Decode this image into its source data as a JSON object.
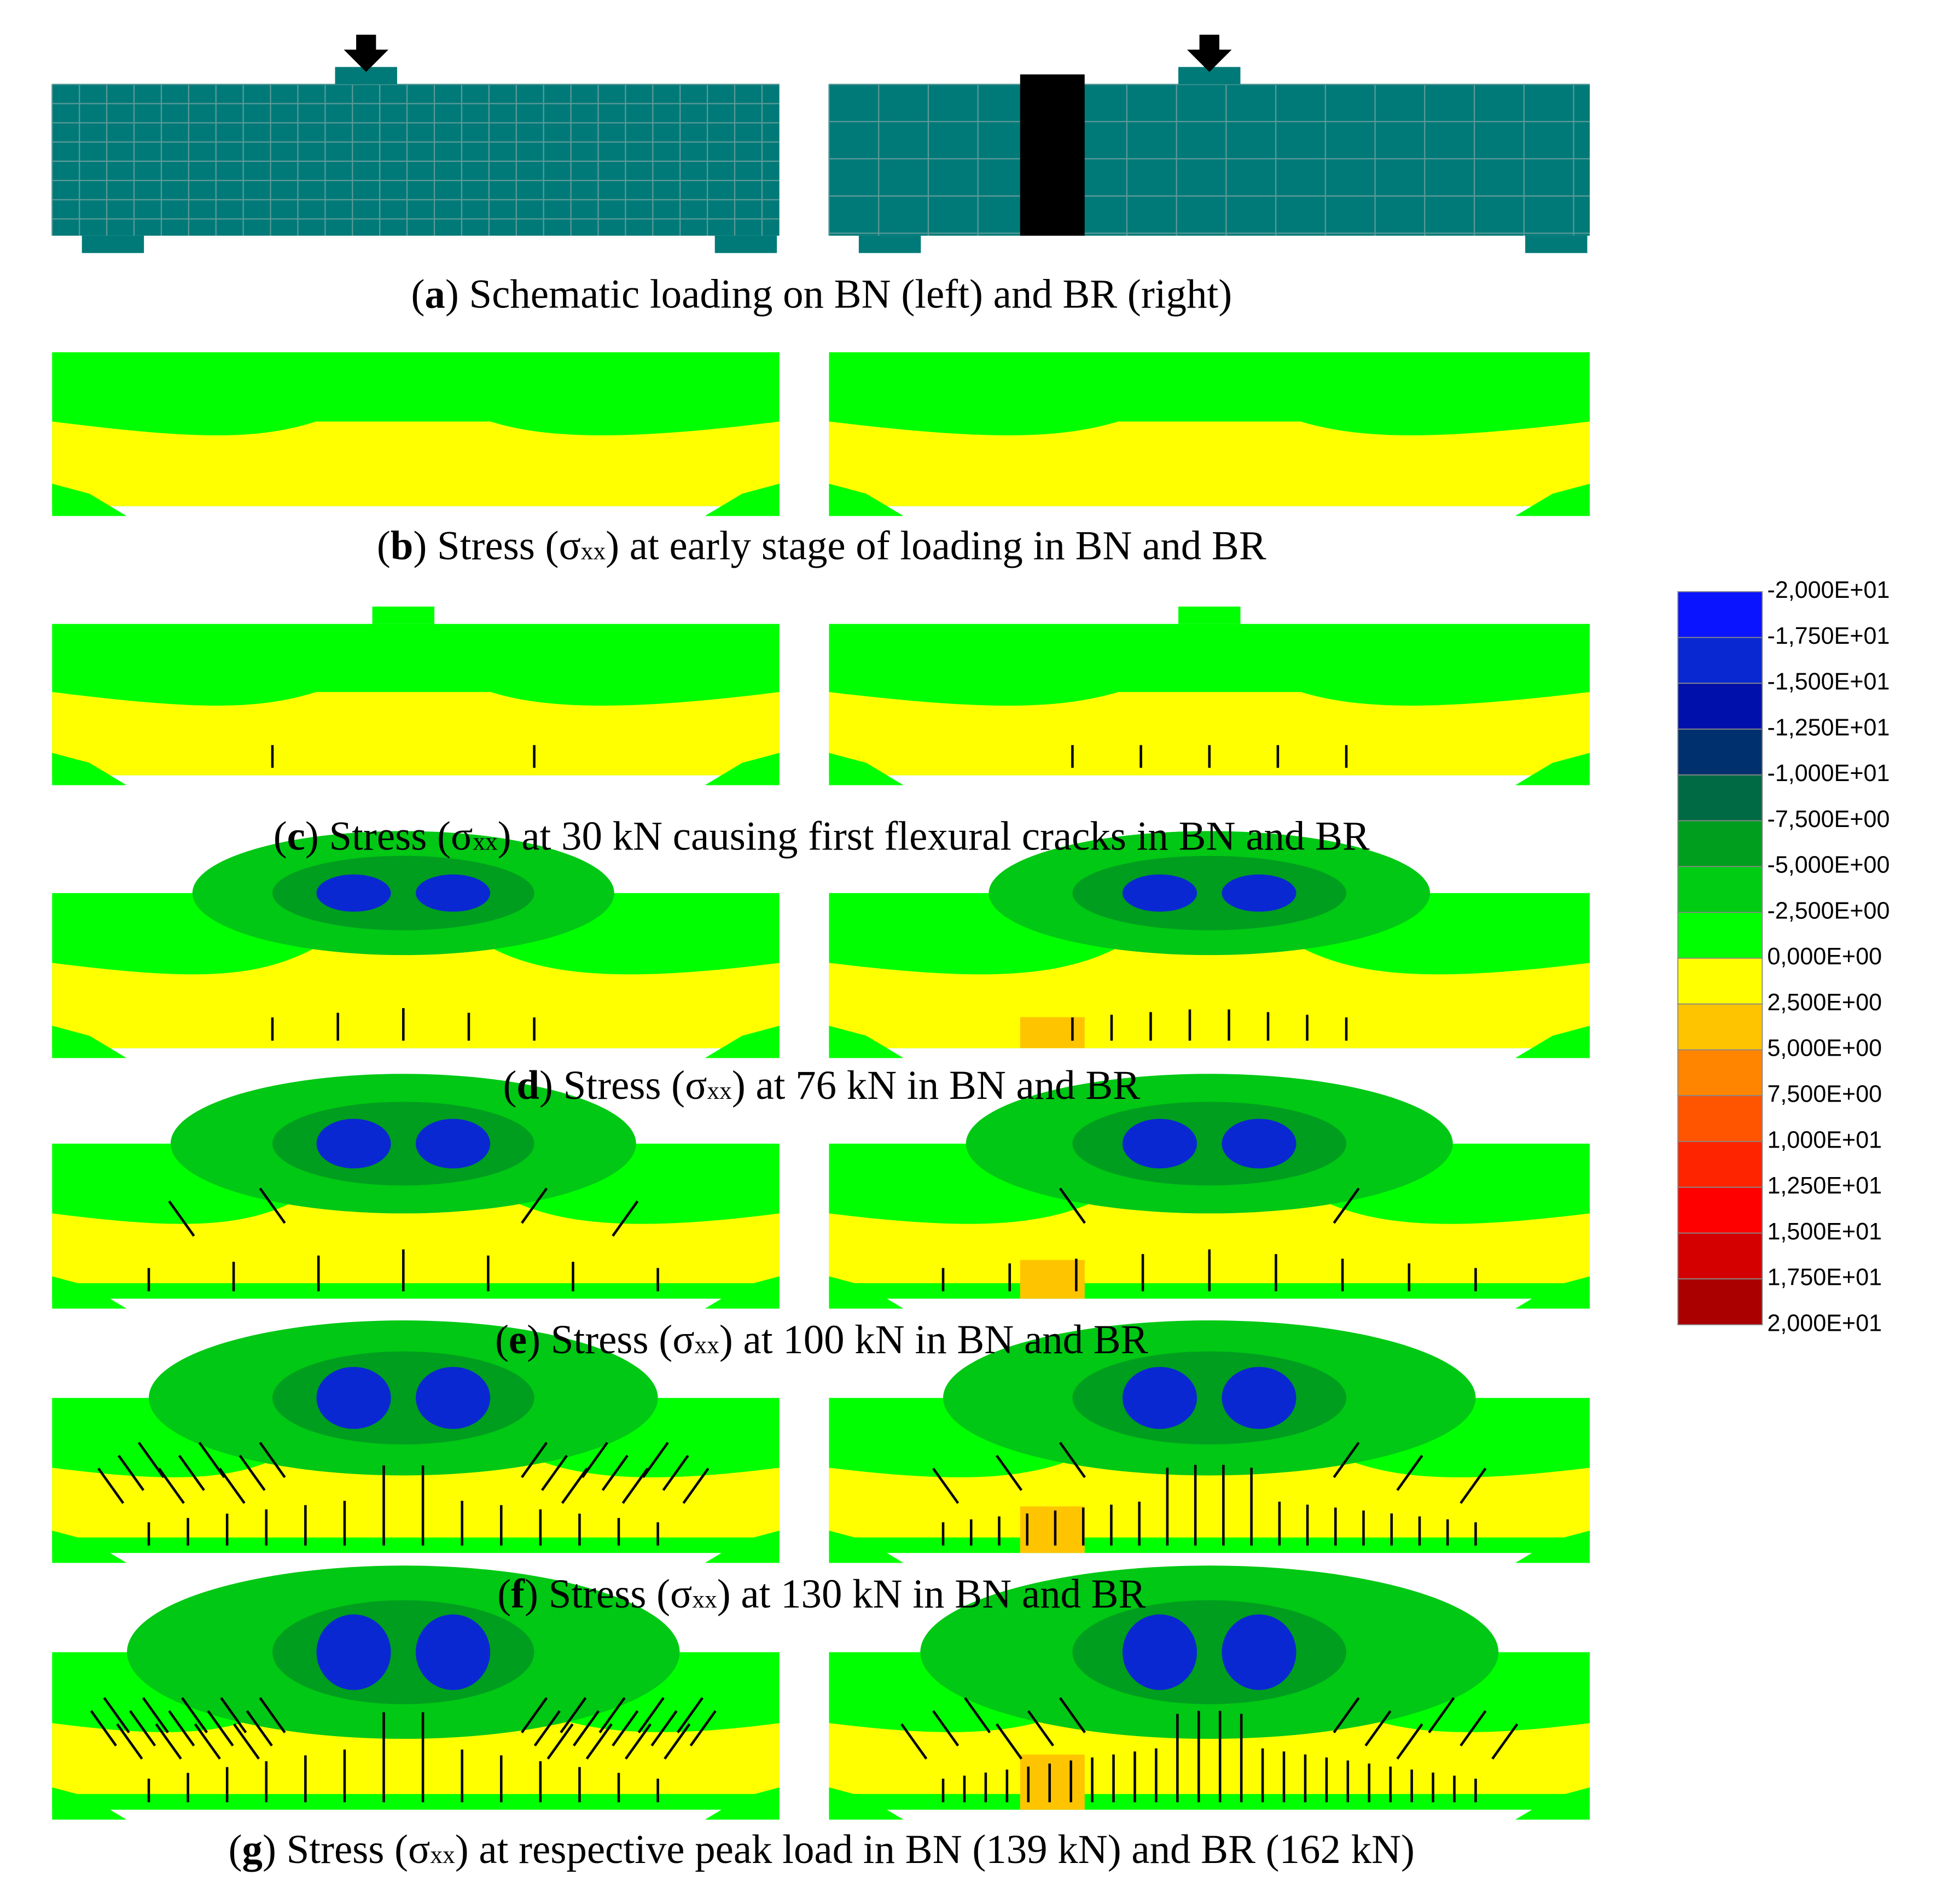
{
  "panels": [
    {
      "caption": [
        {
          "text": "("
        },
        {
          "text": "a",
          "bold": true
        },
        {
          "text": ") Schematic loading on BN (left) and BR (right)"
        }
      ]
    },
    {
      "caption": [
        {
          "text": "("
        },
        {
          "text": "b",
          "bold": true
        },
        {
          "text": ") Stress (σ"
        },
        {
          "text": "xx",
          "sub": true
        },
        {
          "text": ") at early stage of loading in BN and BR"
        }
      ]
    },
    {
      "caption": [
        {
          "text": "("
        },
        {
          "text": "c",
          "bold": true
        },
        {
          "text": ") Stress (σ"
        },
        {
          "text": "xx",
          "sub": true
        },
        {
          "text": ") at 30 kN causing first flexural cracks in BN and BR"
        }
      ]
    },
    {
      "caption": [
        {
          "text": "("
        },
        {
          "text": "d",
          "bold": true
        },
        {
          "text": ") Stress (σ"
        },
        {
          "text": "xx",
          "sub": true
        },
        {
          "text": ") at 76 kN in BN and BR"
        }
      ]
    },
    {
      "caption": [
        {
          "text": "("
        },
        {
          "text": "e",
          "bold": true
        },
        {
          "text": ") Stress (σ"
        },
        {
          "text": "xx",
          "sub": true
        },
        {
          "text": ") at 100 kN in BN and BR"
        }
      ]
    },
    {
      "caption": [
        {
          "text": "("
        },
        {
          "text": "f",
          "bold": true
        },
        {
          "text": ") Stress (σ"
        },
        {
          "text": "xx",
          "sub": true
        },
        {
          "text": ") at 130 kN in BN and BR"
        }
      ]
    },
    {
      "caption": [
        {
          "text": "("
        },
        {
          "text": "g",
          "bold": true
        },
        {
          "text": ") Stress (σ"
        },
        {
          "text": "xx",
          "sub": true
        },
        {
          "text": ") at respective peak load in BN (139 kN) and BR (162 kN)"
        }
      ]
    }
  ],
  "legend": {
    "labels": [
      "-2,000E+01",
      "-1,750E+01",
      "-1,500E+01",
      "-1,250E+01",
      "-1,000E+01",
      "-7,500E+00",
      "-5,000E+00",
      "-2,500E+00",
      "0,000E+00",
      "2,500E+00",
      "5,000E+00",
      "7,500E+00",
      "1,000E+01",
      "1,250E+01",
      "1,500E+01",
      "1,750E+01",
      "2,000E+01"
    ],
    "colors": [
      "#0a14ff",
      "#0a28d2",
      "#0010aa",
      "#00306e",
      "#006a44",
      "#009e1e",
      "#00cc14",
      "#00ff00",
      "#ffff00",
      "#ffc400",
      "#ff8400",
      "#ff5400",
      "#ff2400",
      "#ff0000",
      "#d40000",
      "#aa0000"
    ]
  }
}
